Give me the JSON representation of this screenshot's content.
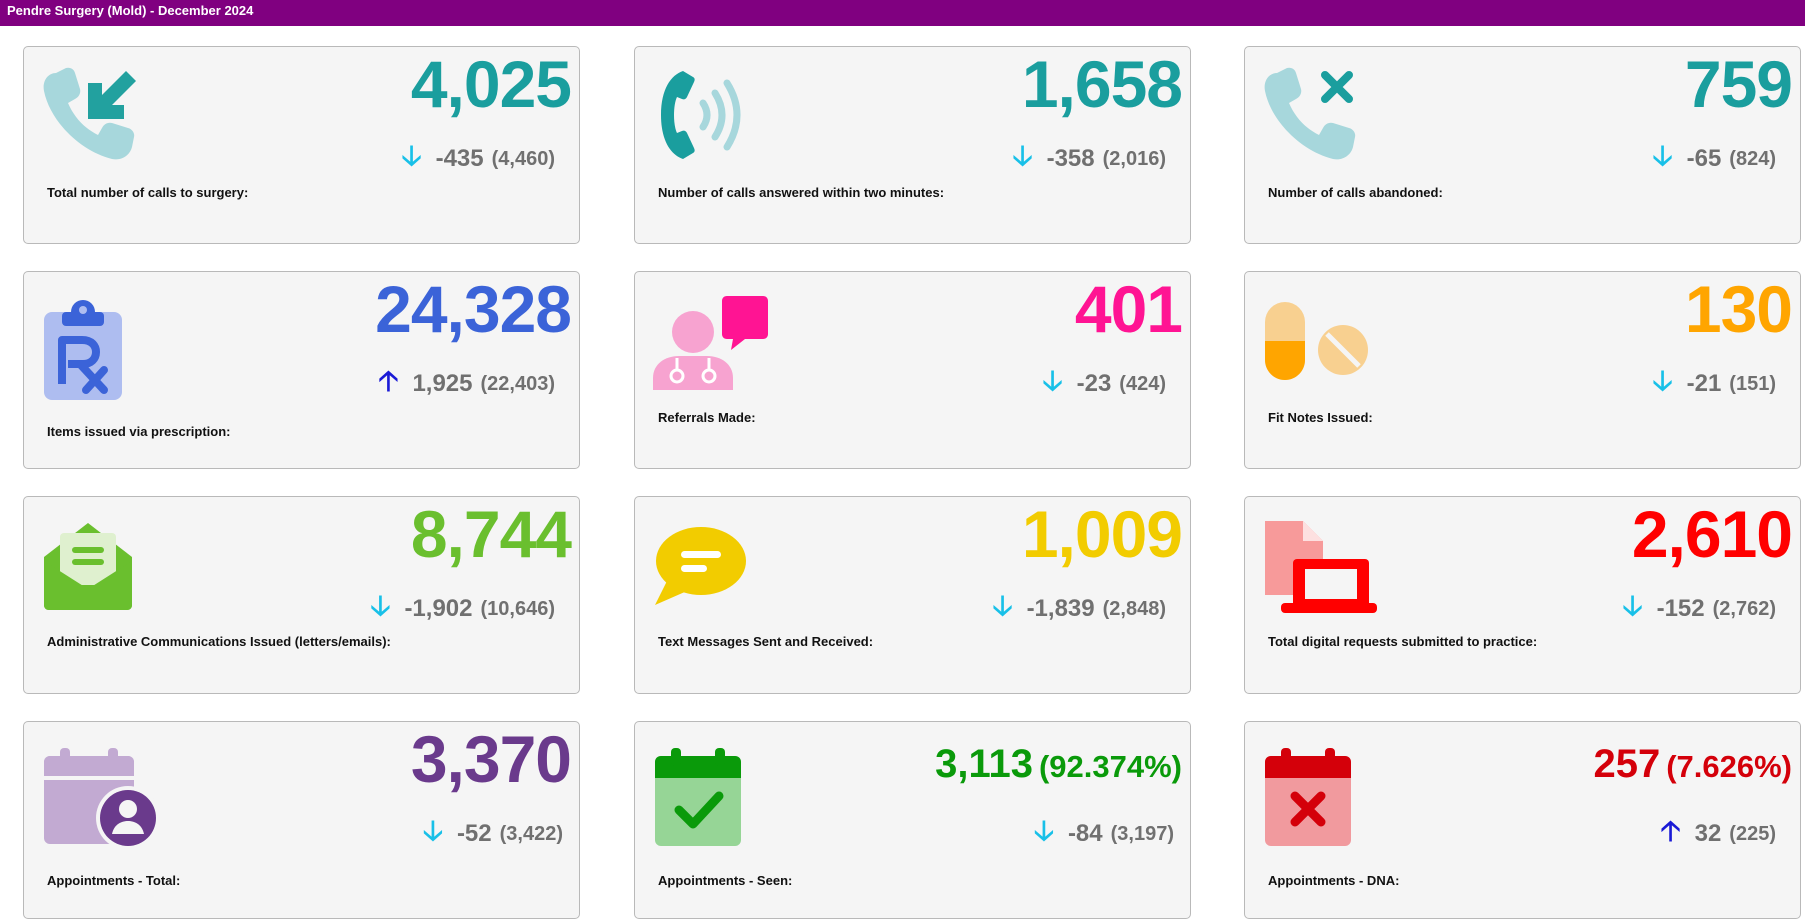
{
  "header": {
    "title": "Pendre Surgery (Mold) - December 2024"
  },
  "cards": [
    {
      "label": "Total number of calls to surgery:",
      "value": "4,025",
      "delta": "-435",
      "previous": "(4,460)",
      "trend": "down",
      "color": "#1a9e9e",
      "icon": "incoming-call-icon"
    },
    {
      "label": "Number of calls answered within two minutes:",
      "value": "1,658",
      "delta": "-358",
      "previous": "(2,016)",
      "trend": "down",
      "color": "#1a9e9e",
      "icon": "ringing-phone-icon"
    },
    {
      "label": "Number of calls abandoned:",
      "value": "759",
      "delta": "-65",
      "previous": "(824)",
      "trend": "down",
      "color": "#1a9e9e",
      "icon": "missed-call-icon"
    },
    {
      "label": "Items issued via prescription:",
      "value": "24,328",
      "delta": "1,925",
      "previous": "(22,403)",
      "trend": "up",
      "color": "#3b63d8",
      "icon": "prescription-clipboard-icon"
    },
    {
      "label": "Referrals Made:",
      "value": "401",
      "delta": "-23",
      "previous": "(424)",
      "trend": "down",
      "color": "#ff1493",
      "icon": "doctor-chat-icon"
    },
    {
      "label": "Fit Notes Issued:",
      "value": "130",
      "delta": "-21",
      "previous": "(151)",
      "trend": "down",
      "color": "#ffa500",
      "icon": "pills-icon"
    },
    {
      "label": "Administrative Communications Issued (letters/emails):",
      "value": "8,744",
      "delta": "-1,902",
      "previous": "(10,646)",
      "trend": "down",
      "color": "#6abf2e",
      "icon": "open-envelope-icon"
    },
    {
      "label": "Text Messages Sent and Received:",
      "value": "1,009",
      "delta": "-1,839",
      "previous": "(2,848)",
      "trend": "down",
      "color": "#f2cc00",
      "icon": "speech-bubble-icon"
    },
    {
      "label": "Total digital requests submitted to practice:",
      "value": "2,610",
      "delta": "-152",
      "previous": "(2,762)",
      "trend": "down",
      "color": "#ff0000",
      "icon": "laptop-document-icon"
    },
    {
      "label": "Appointments - Total:",
      "value": "3,370",
      "delta": "-52",
      "previous": "(3,422)",
      "trend": "down",
      "color": "#6a3a8c",
      "icon": "calendar-user-icon"
    },
    {
      "label": "Appointments - Seen:",
      "value": "3,113",
      "percent": "(92.374%)",
      "delta": "-84",
      "previous": "(3,197)",
      "trend": "down",
      "color": "#0a9a0a",
      "icon": "calendar-check-icon"
    },
    {
      "label": "Appointments - DNA:",
      "value": "257",
      "percent": "(7.626%)",
      "delta": "32",
      "previous": "(225)",
      "trend": "up",
      "color": "#d4000a",
      "icon": "calendar-cross-icon"
    }
  ],
  "arrows": {
    "down": "🡣",
    "up": "🡡"
  }
}
